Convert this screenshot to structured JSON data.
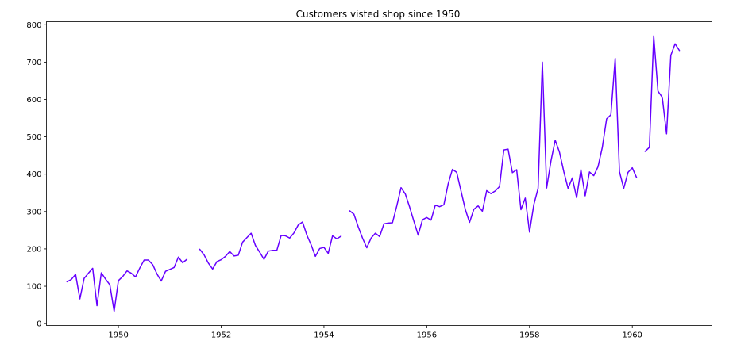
{
  "chart_data": {
    "type": "line",
    "title": "Customers visted shop since 1950",
    "xlabel": "",
    "ylabel": "",
    "xlim": [
      1948.6,
      1961.55
    ],
    "ylim": [
      -5,
      808
    ],
    "x_ticks": [
      1950,
      1952,
      1954,
      1956,
      1958,
      1960
    ],
    "x_tick_labels": [
      "1950",
      "1952",
      "1954",
      "1956",
      "1958",
      "1960"
    ],
    "y_ticks": [
      0,
      100,
      200,
      300,
      400,
      500,
      600,
      700,
      800
    ],
    "y_tick_labels": [
      "0",
      "100",
      "200",
      "300",
      "400",
      "500",
      "600",
      "700",
      "800"
    ],
    "grid": false,
    "legend": "none",
    "series": [
      {
        "color": "#6600ff",
        "segments": [
          [
            [
              1949.0,
              112
            ],
            [
              1949.083,
              118
            ],
            [
              1949.167,
              132
            ],
            [
              1949.25,
              66
            ],
            [
              1949.333,
              121
            ],
            [
              1949.417,
              135
            ],
            [
              1949.5,
              148
            ],
            [
              1949.583,
              48
            ],
            [
              1949.667,
              136
            ],
            [
              1949.75,
              119
            ],
            [
              1949.833,
              104
            ],
            [
              1949.917,
              33
            ],
            [
              1950.0,
              115
            ],
            [
              1950.083,
              126
            ],
            [
              1950.167,
              141
            ],
            [
              1950.25,
              135
            ],
            [
              1950.333,
              125
            ],
            [
              1950.417,
              149
            ],
            [
              1950.5,
              170
            ],
            [
              1950.583,
              170
            ],
            [
              1950.667,
              158
            ],
            [
              1950.75,
              133
            ],
            [
              1950.833,
              114
            ],
            [
              1950.917,
              140
            ],
            [
              1951.0,
              145
            ],
            [
              1951.083,
              150
            ],
            [
              1951.167,
              178
            ],
            [
              1951.25,
              163
            ],
            [
              1951.333,
              172
            ]
          ],
          [
            [
              1951.583,
              199
            ],
            [
              1951.667,
              184
            ],
            [
              1951.75,
              162
            ],
            [
              1951.833,
              146
            ],
            [
              1951.917,
              166
            ],
            [
              1952.0,
              171
            ],
            [
              1952.083,
              180
            ],
            [
              1952.167,
              193
            ],
            [
              1952.25,
              181
            ],
            [
              1952.333,
              183
            ],
            [
              1952.417,
              218
            ],
            [
              1952.5,
              230
            ],
            [
              1952.583,
              242
            ],
            [
              1952.667,
              209
            ],
            [
              1952.75,
              191
            ],
            [
              1952.833,
              172
            ],
            [
              1952.917,
              194
            ],
            [
              1953.0,
              196
            ],
            [
              1953.083,
              196
            ],
            [
              1953.167,
              236
            ],
            [
              1953.25,
              235
            ],
            [
              1953.333,
              229
            ],
            [
              1953.417,
              243
            ],
            [
              1953.5,
              264
            ],
            [
              1953.583,
              272
            ],
            [
              1953.667,
              237
            ],
            [
              1953.75,
              211
            ],
            [
              1953.833,
              180
            ],
            [
              1953.917,
              201
            ],
            [
              1954.0,
              204
            ],
            [
              1954.083,
              188
            ],
            [
              1954.167,
              235
            ],
            [
              1954.25,
              227
            ],
            [
              1954.333,
              234
            ]
          ],
          [
            [
              1954.5,
              302
            ],
            [
              1954.583,
              293
            ],
            [
              1954.667,
              259
            ],
            [
              1954.75,
              229
            ],
            [
              1954.833,
              203
            ],
            [
              1954.917,
              229
            ],
            [
              1955.0,
              242
            ],
            [
              1955.083,
              233
            ],
            [
              1955.167,
              267
            ],
            [
              1955.25,
              269
            ],
            [
              1955.333,
              270
            ],
            [
              1955.417,
              315
            ],
            [
              1955.5,
              364
            ],
            [
              1955.583,
              347
            ],
            [
              1955.667,
              312
            ],
            [
              1955.75,
              274
            ],
            [
              1955.833,
              237
            ],
            [
              1955.917,
              278
            ],
            [
              1956.0,
              284
            ],
            [
              1956.083,
              277
            ],
            [
              1956.167,
              317
            ],
            [
              1956.25,
              313
            ],
            [
              1956.333,
              318
            ],
            [
              1956.417,
              374
            ],
            [
              1956.5,
              413
            ],
            [
              1956.583,
              405
            ],
            [
              1956.667,
              355
            ],
            [
              1956.75,
              306
            ],
            [
              1956.833,
              271
            ],
            [
              1956.917,
              306
            ],
            [
              1957.0,
              315
            ],
            [
              1957.083,
              301
            ],
            [
              1957.167,
              356
            ],
            [
              1957.25,
              348
            ],
            [
              1957.333,
              355
            ],
            [
              1957.417,
              367
            ],
            [
              1957.5,
              465
            ],
            [
              1957.583,
              467
            ],
            [
              1957.667,
              404
            ],
            [
              1957.75,
              412
            ],
            [
              1957.833,
              305
            ],
            [
              1957.917,
              336
            ],
            [
              1958.0,
              245
            ],
            [
              1958.083,
              318
            ],
            [
              1958.167,
              362
            ],
            [
              1958.25,
              700
            ],
            [
              1958.333,
              363
            ],
            [
              1958.417,
              435
            ],
            [
              1958.5,
              491
            ],
            [
              1958.583,
              459
            ],
            [
              1958.667,
              407
            ],
            [
              1958.75,
              362
            ],
            [
              1958.833,
              390
            ],
            [
              1958.917,
              337
            ],
            [
              1959.0,
              412
            ],
            [
              1959.083,
              342
            ],
            [
              1959.167,
              406
            ],
            [
              1959.25,
              396
            ],
            [
              1959.333,
              420
            ],
            [
              1959.417,
              472
            ],
            [
              1959.5,
              548
            ],
            [
              1959.583,
              559
            ],
            [
              1959.667,
              710
            ],
            [
              1959.75,
              407
            ],
            [
              1959.833,
              362
            ],
            [
              1959.917,
              405
            ],
            [
              1960.0,
              417
            ],
            [
              1960.083,
              391
            ]
          ],
          [
            [
              1960.25,
              461
            ],
            [
              1960.333,
              472
            ],
            [
              1960.417,
              770
            ],
            [
              1960.5,
              622
            ],
            [
              1960.583,
              606
            ],
            [
              1960.667,
              508
            ],
            [
              1960.75,
              718
            ],
            [
              1960.833,
              749
            ],
            [
              1960.917,
              731
            ]
          ]
        ]
      }
    ]
  }
}
